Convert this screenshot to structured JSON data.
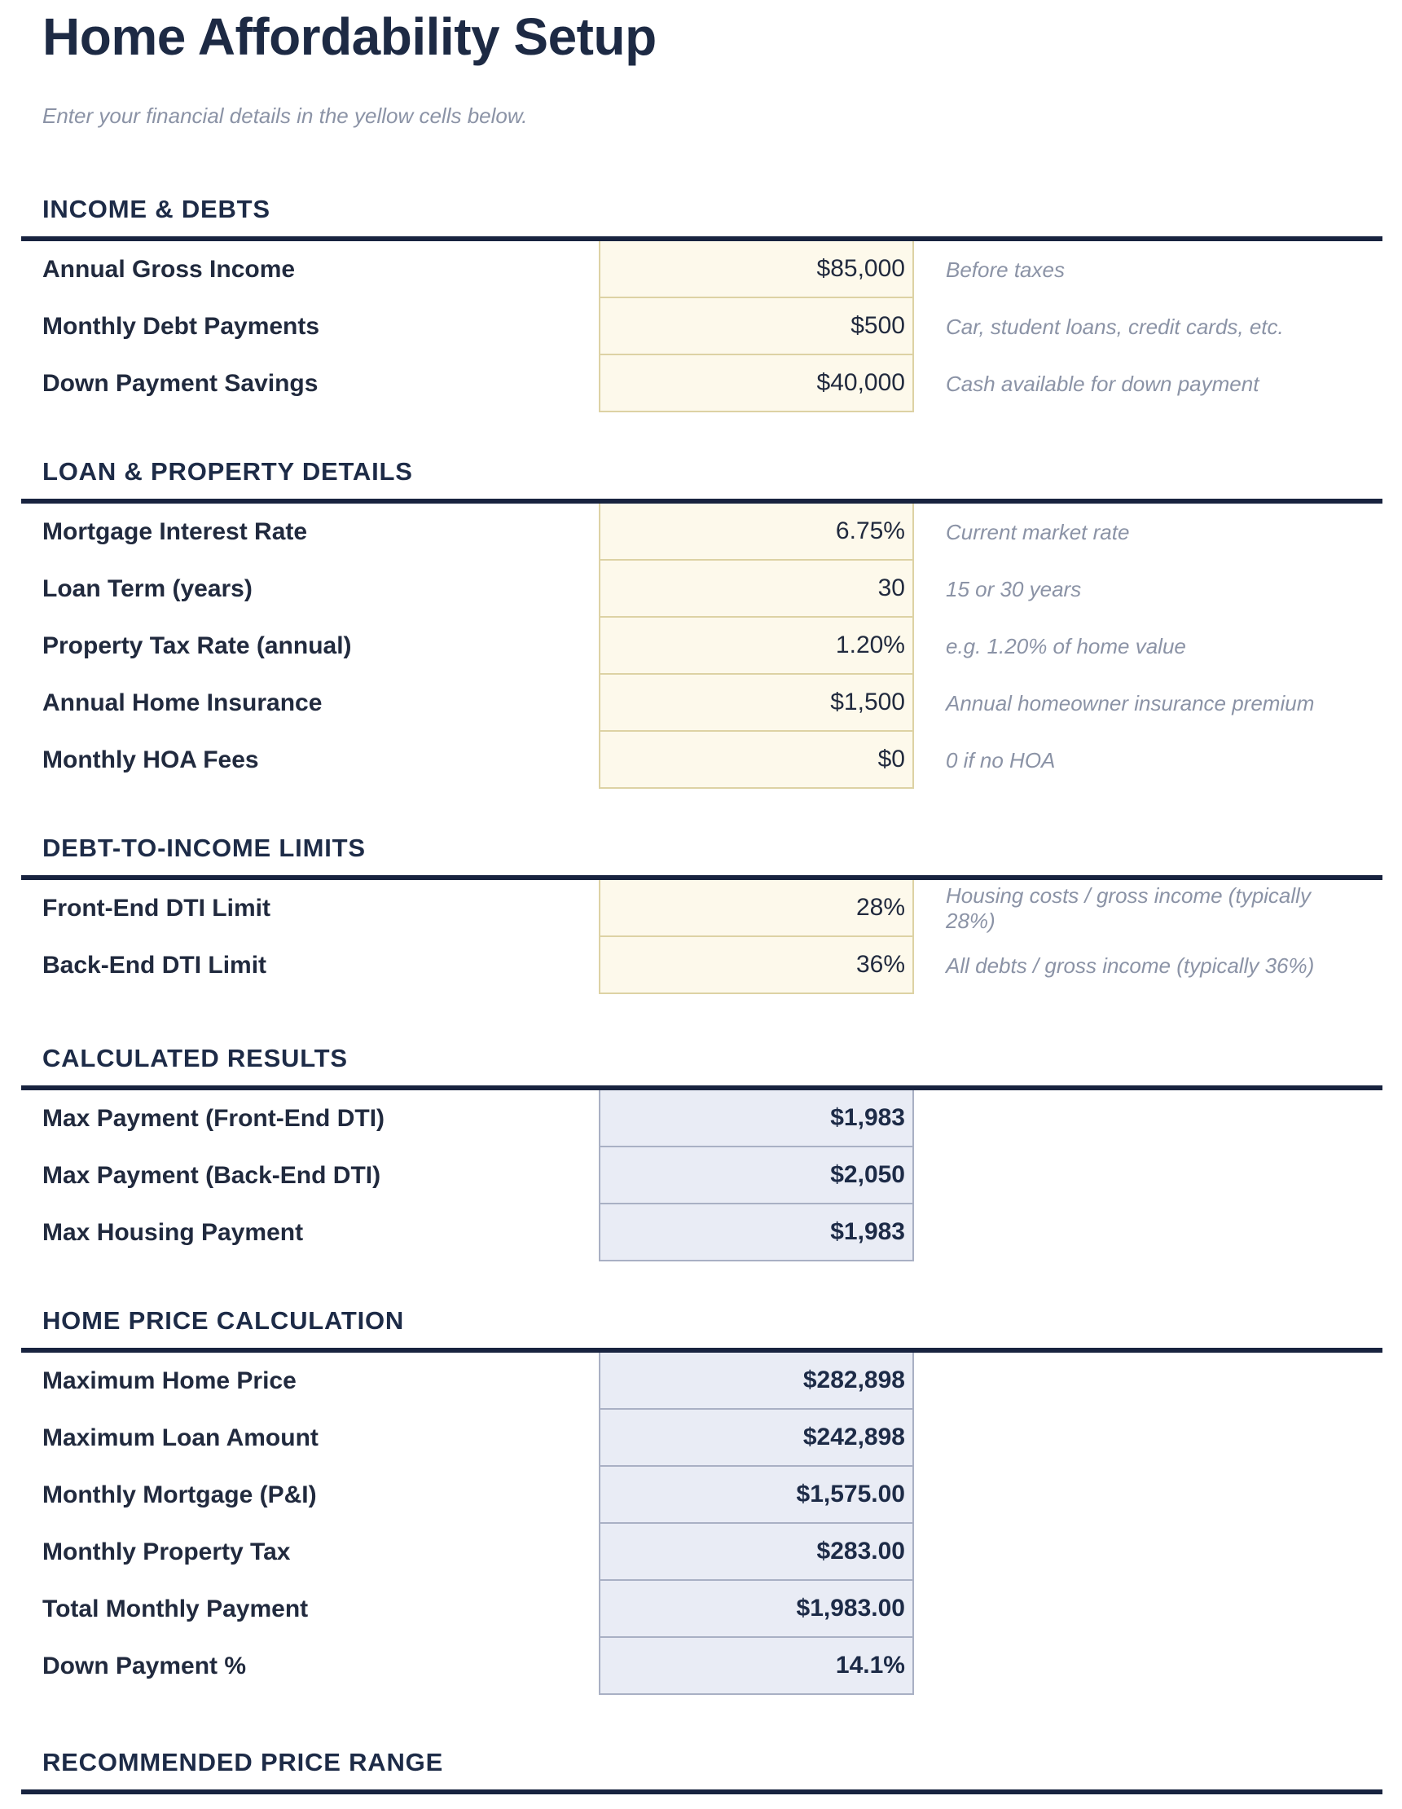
{
  "page": {
    "title": "Home Affordability Setup",
    "subtitle": "Enter your financial details in the yellow cells below."
  },
  "colors": {
    "navy_text": "#1d2a44",
    "rule": "#18233f",
    "input_cell_bg": "#fdf9eb",
    "input_cell_border": "#ddd2a4",
    "result_cell_bg": "#e9ecf5",
    "result_cell_border": "#a9b0c4",
    "note_gray": "#8b93a6"
  },
  "sections": [
    {
      "heading": "INCOME & DEBTS",
      "rows": [
        {
          "label": "Annual Gross Income",
          "value": "$85,000",
          "note": "Before taxes"
        },
        {
          "label": "Monthly Debt Payments",
          "value": "$500",
          "note": "Car, student loans, credit cards, etc."
        },
        {
          "label": "Down Payment Savings",
          "value": "$40,000",
          "note": "Cash available for down payment"
        }
      ]
    },
    {
      "heading": "LOAN & PROPERTY DETAILS",
      "rows": [
        {
          "label": "Mortgage Interest Rate",
          "value": "6.75%",
          "note": "Current market rate"
        },
        {
          "label": "Loan Term (years)",
          "value": "30",
          "note": "15 or 30 years"
        },
        {
          "label": "Property Tax Rate (annual)",
          "value": "1.20%",
          "note": "e.g. 1.20% of home value"
        },
        {
          "label": "Annual Home Insurance",
          "value": "$1,500",
          "note": "Annual homeowner insurance premium"
        },
        {
          "label": "Monthly HOA Fees",
          "value": "$0",
          "note": "0 if no HOA"
        }
      ]
    },
    {
      "heading": "DEBT-TO-INCOME LIMITS",
      "rows": [
        {
          "label": "Front-End DTI Limit",
          "value": "28%",
          "note": "Housing costs / gross income (typically\n28%)"
        },
        {
          "label": "Back-End DTI Limit",
          "value": "36%",
          "note": "All debts / gross income (typically 36%)"
        }
      ]
    },
    {
      "heading": "CALCULATED RESULTS",
      "rows": [
        {
          "label": "Max Payment (Front-End DTI)",
          "value": "$1,983",
          "note": ""
        },
        {
          "label": "Max Payment (Back-End DTI)",
          "value": "$2,050",
          "note": ""
        },
        {
          "label": "Max Housing Payment",
          "value": "$1,983",
          "note": ""
        }
      ]
    },
    {
      "heading": "HOME PRICE CALCULATION",
      "rows": [
        {
          "label": "Maximum Home Price",
          "value": "$282,898",
          "note": ""
        },
        {
          "label": "Maximum Loan Amount",
          "value": "$242,898",
          "note": ""
        },
        {
          "label": "Monthly Mortgage (P&I)",
          "value": "$1,575.00",
          "note": ""
        },
        {
          "label": "Monthly Property Tax",
          "value": "$283.00",
          "note": ""
        },
        {
          "label": "Total Monthly Payment",
          "value": "$1,983.00",
          "note": ""
        },
        {
          "label": "Down Payment %",
          "value": "14.1%",
          "note": ""
        }
      ]
    },
    {
      "heading": "RECOMMENDED PRICE RANGE",
      "rows": []
    }
  ]
}
